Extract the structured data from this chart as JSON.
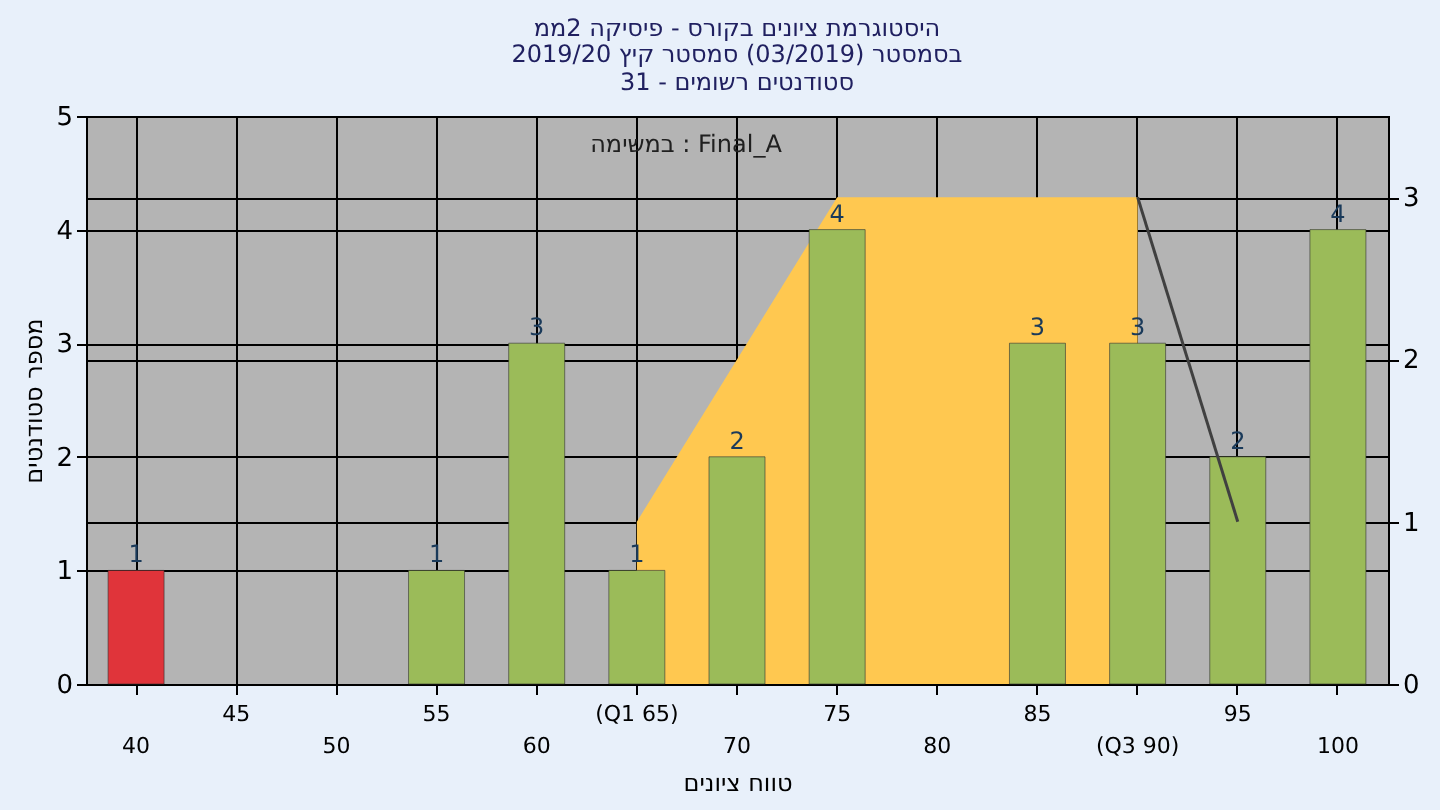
{
  "chart_data": {
    "type": "bar",
    "title": "היסטוגרמת ציונים בקורס - פיסיקה 2ממ",
    "subtitle": "בסמסטר (03/2019) סמסטר קיץ 2019/20\nסטודנטים רשומים - 31",
    "xlabel": "טווח ציונים",
    "ylabel": "מספר סטודנטים",
    "categories": [
      "40",
      "45",
      "50",
      "55",
      "60",
      "(Q1 65)",
      "70",
      "75",
      "80",
      "85",
      "(Q3 90)",
      "95",
      "100"
    ],
    "ylim": [
      0,
      5
    ],
    "yticks": [
      0,
      1,
      2,
      3,
      4,
      5
    ],
    "y2lim": [
      0,
      3.5
    ],
    "y2ticks": [
      0,
      1,
      2,
      3
    ],
    "series": [
      {
        "value_labels": [
          "1",
          null,
          null,
          "1",
          "3",
          "1",
          "2",
          "4",
          null,
          "3",
          "3",
          "2",
          "4"
        ],
        "colors": [
          "#e0343a",
          null,
          null,
          "#9bbb59",
          "#9bbb59",
          "#9bbb59",
          "#9bbb59",
          "#9bbb59",
          null,
          "#9bbb59",
          "#9bbb59",
          "#9bbb59",
          "#9bbb59"
        ],
        "values": [
          1,
          null,
          null,
          1,
          3,
          1,
          2,
          4,
          null,
          3,
          3,
          2,
          4
        ]
      },
      {
        "type": "area",
        "axis": "y2",
        "color": "#ffc850",
        "values": [
          null,
          null,
          null,
          null,
          null,
          1,
          2,
          3,
          3,
          3,
          3,
          null,
          null
        ]
      },
      {
        "type": "line",
        "axis": "y2",
        "color": "#404040",
        "values": [
          null,
          null,
          null,
          null,
          null,
          null,
          null,
          null,
          null,
          null,
          3,
          1,
          null
        ]
      }
    ],
    "grid": true,
    "annotations": [
      "במשימה : Final_A"
    ]
  }
}
